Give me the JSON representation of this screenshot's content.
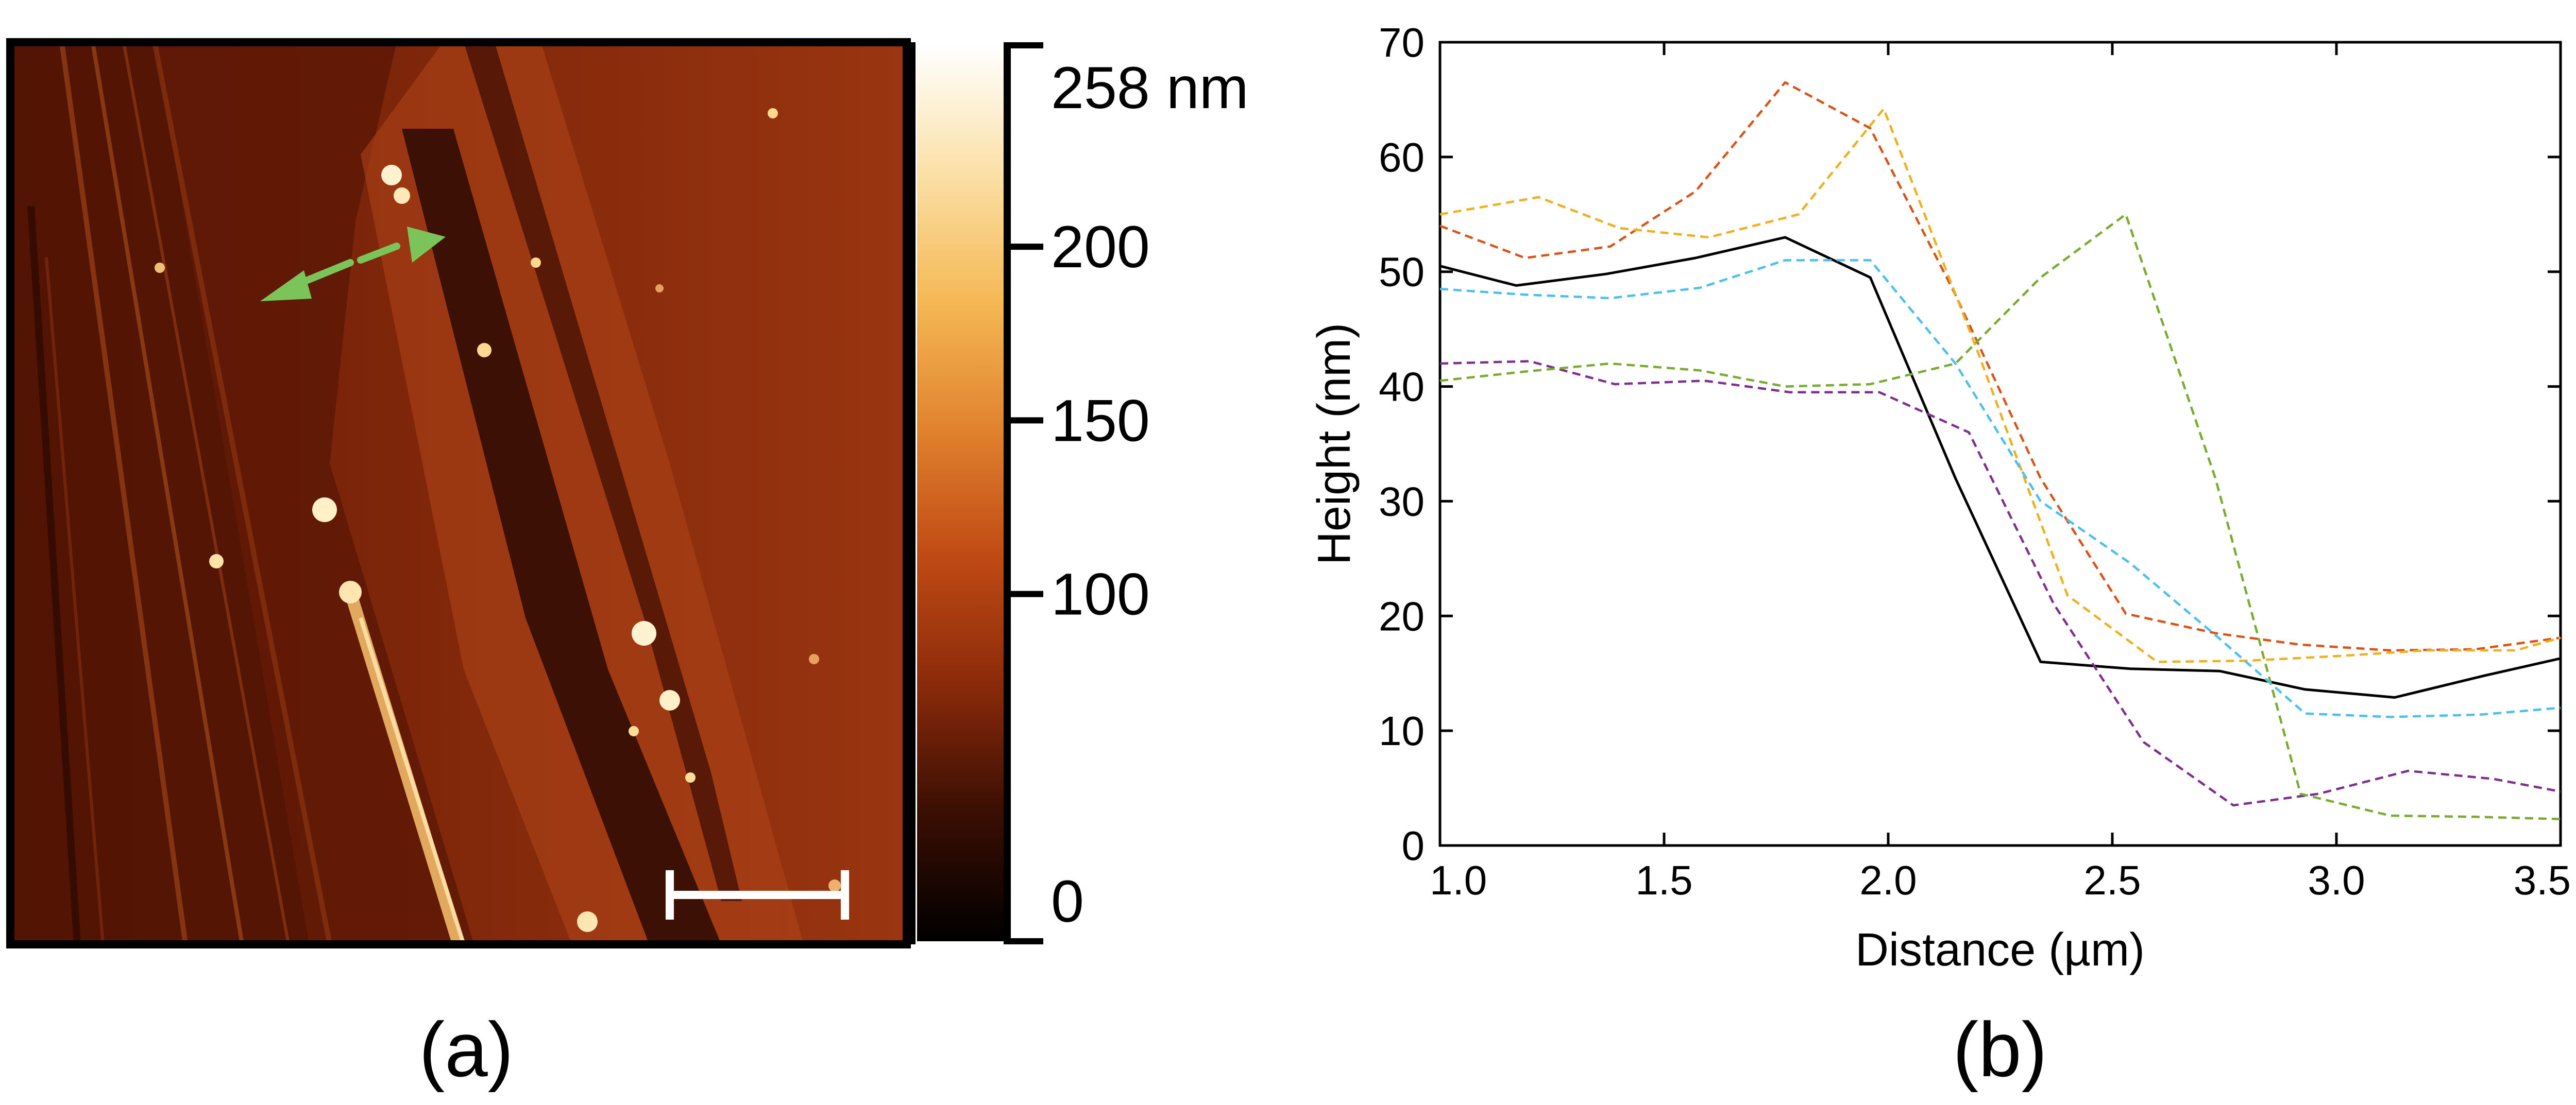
{
  "panel_a": {
    "label": "(a)",
    "colorbar": {
      "ticks": [
        {
          "value": 258,
          "text": "258 nm"
        },
        {
          "value": 200,
          "text": "200"
        },
        {
          "value": 150,
          "text": "150"
        },
        {
          "value": 100,
          "text": "100"
        },
        {
          "value": 0,
          "text": "0"
        }
      ],
      "range": [
        0,
        258
      ],
      "colors": [
        "#000000",
        "#3a0e03",
        "#8a2a0a",
        "#c04a14",
        "#e0822e",
        "#f5b854",
        "#fbe0a6",
        "#ffffff"
      ]
    },
    "arrow_color": "#7ac45a"
  },
  "chart_data": {
    "type": "line",
    "label": "(b)",
    "xlabel": "Distance (µm)",
    "ylabel": "Height (nm)",
    "xlim": [
      1.0,
      3.5
    ],
    "ylim": [
      0,
      70
    ],
    "xticks": [
      "1.0",
      "1.5",
      "2.0",
      "2.5",
      "3.0",
      "3.5"
    ],
    "yticks": [
      "0",
      "10",
      "20",
      "30",
      "40",
      "50",
      "60",
      "70"
    ],
    "grid": false,
    "series": [
      {
        "color": "#000000",
        "style": "solid",
        "x": [
          1.0,
          1.17,
          1.37,
          1.57,
          1.77,
          1.96,
          2.15,
          2.34,
          2.54,
          2.74,
          2.93,
          3.13,
          3.33,
          3.5
        ],
        "y": [
          50.5,
          48.8,
          49.8,
          51.2,
          53.0,
          49.5,
          32.0,
          16.0,
          15.4,
          15.2,
          13.6,
          12.9,
          14.8,
          16.3
        ]
      },
      {
        "color": "#d95319",
        "style": "dashed",
        "x": [
          1.0,
          1.19,
          1.38,
          1.57,
          1.77,
          1.96,
          2.15,
          2.34,
          2.53,
          2.73,
          2.92,
          3.12,
          3.31,
          3.5
        ],
        "y": [
          54.0,
          51.2,
          52.2,
          57.0,
          66.5,
          62.5,
          48.0,
          32.0,
          20.2,
          18.5,
          17.5,
          17.0,
          17.1,
          18.1
        ]
      },
      {
        "color": "#edb120",
        "style": "dashed",
        "x": [
          1.0,
          1.22,
          1.4,
          1.6,
          1.8,
          1.99,
          2.2,
          2.4,
          2.6,
          2.8,
          3.0,
          3.2,
          3.4,
          3.5
        ],
        "y": [
          55.0,
          56.5,
          53.8,
          53.0,
          55.0,
          64.2,
          43.0,
          21.8,
          16.0,
          16.1,
          16.5,
          17.0,
          17.0,
          18.1
        ]
      },
      {
        "color": "#7e2f8e",
        "style": "dashed",
        "x": [
          1.0,
          1.2,
          1.39,
          1.59,
          1.78,
          1.98,
          2.18,
          2.37,
          2.57,
          2.77,
          2.96,
          3.16,
          3.35,
          3.5
        ],
        "y": [
          42.0,
          42.2,
          40.2,
          40.5,
          39.5,
          39.5,
          36.0,
          21.0,
          9.0,
          3.5,
          4.5,
          6.5,
          5.8,
          4.7
        ]
      },
      {
        "color": "#77ac30",
        "style": "dashed",
        "x": [
          1.0,
          1.19,
          1.38,
          1.58,
          1.77,
          1.96,
          2.15,
          2.34,
          2.53,
          2.73,
          2.92,
          3.12,
          3.31,
          3.5
        ],
        "y": [
          40.5,
          41.3,
          42.0,
          41.4,
          40.0,
          40.2,
          42.0,
          49.5,
          55.0,
          32.0,
          4.5,
          2.6,
          2.5,
          2.3
        ]
      },
      {
        "color": "#4dbeee",
        "style": "dashed",
        "x": [
          1.0,
          1.19,
          1.38,
          1.58,
          1.77,
          1.96,
          2.15,
          2.34,
          2.54,
          2.74,
          2.93,
          3.12,
          3.32,
          3.5
        ],
        "y": [
          48.5,
          48.0,
          47.7,
          48.6,
          51.0,
          51.0,
          42.0,
          30.0,
          24.6,
          18.0,
          11.5,
          11.2,
          11.4,
          12.0
        ]
      }
    ]
  }
}
